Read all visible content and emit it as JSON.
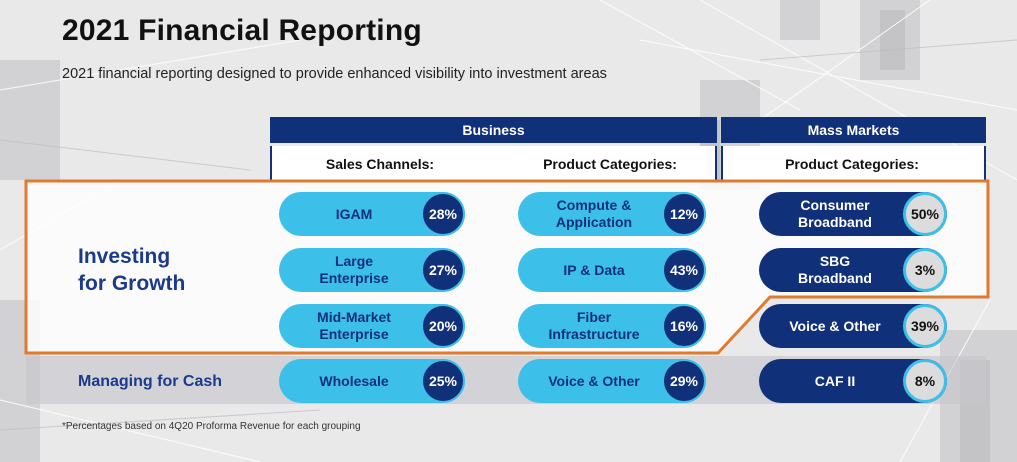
{
  "title": "2021 Financial Reporting",
  "subtitle": "2021 financial reporting designed to provide enhanced visibility into investment areas",
  "headers": {
    "business": "Business",
    "mass_markets": "Mass Markets",
    "sales_channels": "Sales Channels:",
    "business_product_categories": "Product Categories:",
    "mass_product_categories": "Product Categories:"
  },
  "row_labels": {
    "investing": "Investing\nfor Growth",
    "managing": "Managing for Cash"
  },
  "sales_channels": [
    {
      "label": "IGAM",
      "pct": "28%"
    },
    {
      "label": "Large\nEnterprise",
      "pct": "27%"
    },
    {
      "label": "Mid-Market\nEnterprise",
      "pct": "20%"
    },
    {
      "label": "Wholesale",
      "pct": "25%"
    }
  ],
  "business_products": [
    {
      "label": "Compute &\nApplication",
      "pct": "12%"
    },
    {
      "label": "IP & Data",
      "pct": "43%"
    },
    {
      "label": "Fiber\nInfrastructure",
      "pct": "16%"
    },
    {
      "label": "Voice & Other",
      "pct": "29%"
    }
  ],
  "mass_products": [
    {
      "label": "Consumer\nBroadband",
      "pct": "50%"
    },
    {
      "label": "SBG\nBroadband",
      "pct": "3%"
    },
    {
      "label": "Voice & Other",
      "pct": "39%"
    },
    {
      "label": "CAF II",
      "pct": "8%"
    }
  ],
  "footnote": "*Percentages based on 4Q20 Proforma Revenue for each grouping",
  "colors": {
    "navy": "#10307a",
    "light_blue": "#3cc0ea",
    "highlight_orange": "#e07a2e",
    "label_blue": "#1b3a8c"
  }
}
